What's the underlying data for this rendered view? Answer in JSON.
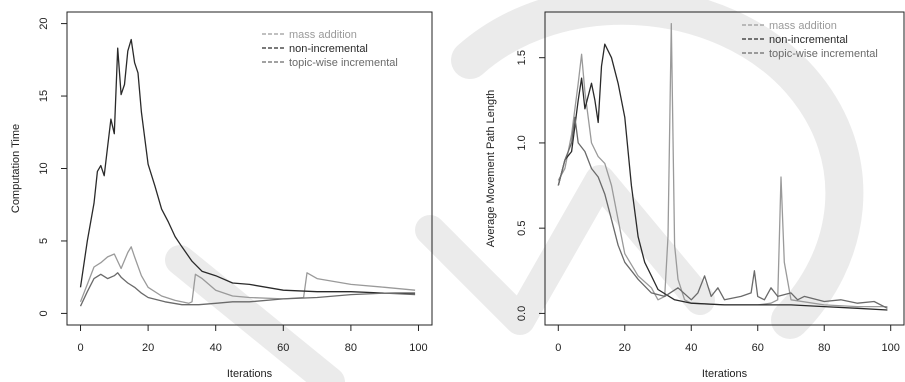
{
  "colors": {
    "mass_addition": "#9a9a9a",
    "non_incremental": "#2a2a2a",
    "topic_wise_incremental": "#6a6a6a",
    "watermark": "#ebebeb"
  },
  "chart_data": [
    {
      "type": "line",
      "xlabel": "Iterations",
      "ylabel": "Computation Time",
      "xlim": [
        0,
        100
      ],
      "ylim": [
        0,
        20
      ],
      "xticks": [
        0,
        20,
        40,
        60,
        80,
        100
      ],
      "yticks": [
        0,
        5,
        10,
        15,
        20
      ],
      "legend": "top-right",
      "series": [
        {
          "name": "mass addition",
          "x": [
            0,
            2,
            4,
            6,
            8,
            10,
            12,
            14,
            15,
            16,
            18,
            20,
            24,
            28,
            32,
            33,
            34,
            36,
            40,
            45,
            50,
            60,
            66,
            67,
            70,
            80,
            90,
            99
          ],
          "y": [
            0.8,
            2.0,
            3.2,
            3.5,
            3.9,
            4.1,
            3.1,
            4.2,
            4.6,
            3.9,
            2.6,
            1.8,
            1.2,
            0.9,
            0.7,
            0.8,
            2.7,
            2.4,
            1.6,
            1.2,
            1.1,
            1.0,
            1.1,
            2.8,
            2.4,
            2.0,
            1.8,
            1.6
          ]
        },
        {
          "name": "non-incremental",
          "x": [
            0,
            2,
            4,
            5,
            6,
            7,
            8,
            9,
            10,
            11,
            12,
            13,
            14,
            15,
            16,
            17,
            18,
            20,
            22,
            24,
            26,
            28,
            30,
            33,
            36,
            40,
            45,
            50,
            60,
            70,
            80,
            90,
            99
          ],
          "y": [
            1.8,
            5.0,
            7.6,
            9.8,
            10.2,
            9.5,
            11.5,
            13.4,
            12.4,
            18.3,
            15.1,
            15.8,
            18.1,
            18.9,
            17.3,
            16.6,
            13.9,
            10.3,
            8.8,
            7.2,
            6.3,
            5.3,
            4.6,
            3.6,
            2.9,
            2.6,
            2.1,
            2.0,
            1.6,
            1.5,
            1.5,
            1.4,
            1.4
          ]
        },
        {
          "name": "topic-wise incremental",
          "x": [
            0,
            2,
            4,
            6,
            8,
            10,
            11,
            12,
            14,
            16,
            18,
            20,
            25,
            30,
            35,
            40,
            45,
            50,
            60,
            70,
            80,
            90,
            99
          ],
          "y": [
            0.5,
            1.5,
            2.4,
            2.7,
            2.4,
            2.6,
            2.8,
            2.5,
            2.1,
            1.8,
            1.4,
            1.1,
            0.8,
            0.6,
            0.6,
            0.7,
            0.8,
            0.8,
            1.0,
            1.1,
            1.3,
            1.4,
            1.3
          ]
        }
      ]
    },
    {
      "type": "line",
      "xlabel": "Iterations",
      "ylabel": "Average Movement Path Length",
      "xlim": [
        0,
        100
      ],
      "ylim": [
        0,
        1.7
      ],
      "xticks": [
        0,
        20,
        40,
        60,
        80,
        100
      ],
      "yticks": [
        0.0,
        0.5,
        1.0,
        1.5
      ],
      "legend": "top-right",
      "series": [
        {
          "name": "mass addition",
          "x": [
            0,
            2,
            4,
            6,
            7,
            8,
            10,
            12,
            14,
            16,
            18,
            20,
            24,
            28,
            30,
            32,
            33,
            34,
            35,
            36,
            38,
            40,
            50,
            60,
            64,
            66,
            67,
            68,
            70,
            80,
            90,
            99
          ],
          "y": [
            0.78,
            0.85,
            1.05,
            1.35,
            1.52,
            1.3,
            1.0,
            0.92,
            0.88,
            0.75,
            0.55,
            0.35,
            0.22,
            0.15,
            0.08,
            0.1,
            0.45,
            1.7,
            0.4,
            0.2,
            0.08,
            0.06,
            0.05,
            0.05,
            0.06,
            0.08,
            0.8,
            0.3,
            0.08,
            0.05,
            0.04,
            0.04
          ]
        },
        {
          "name": "non-incremental",
          "x": [
            0,
            2,
            4,
            6,
            7,
            8,
            10,
            11,
            12,
            13,
            14,
            16,
            18,
            20,
            22,
            24,
            26,
            28,
            30,
            35,
            40,
            50,
            60,
            70,
            80,
            90,
            99
          ],
          "y": [
            0.75,
            0.9,
            0.95,
            1.25,
            1.38,
            1.2,
            1.35,
            1.25,
            1.12,
            1.45,
            1.58,
            1.5,
            1.35,
            1.15,
            0.75,
            0.45,
            0.3,
            0.22,
            0.14,
            0.08,
            0.06,
            0.05,
            0.05,
            0.05,
            0.04,
            0.03,
            0.02
          ]
        },
        {
          "name": "topic-wise incremental",
          "x": [
            0,
            2,
            4,
            5,
            6,
            8,
            10,
            12,
            14,
            16,
            18,
            20,
            24,
            28,
            32,
            36,
            40,
            42,
            44,
            46,
            48,
            50,
            55,
            58,
            59,
            60,
            62,
            64,
            66,
            70,
            72,
            74,
            80,
            85,
            90,
            95,
            99
          ],
          "y": [
            0.75,
            0.9,
            1.0,
            1.15,
            1.0,
            0.95,
            0.85,
            0.8,
            0.7,
            0.55,
            0.4,
            0.3,
            0.2,
            0.12,
            0.1,
            0.15,
            0.08,
            0.12,
            0.22,
            0.1,
            0.15,
            0.08,
            0.1,
            0.12,
            0.25,
            0.1,
            0.08,
            0.15,
            0.1,
            0.12,
            0.08,
            0.1,
            0.07,
            0.08,
            0.06,
            0.07,
            0.03
          ]
        }
      ]
    }
  ]
}
